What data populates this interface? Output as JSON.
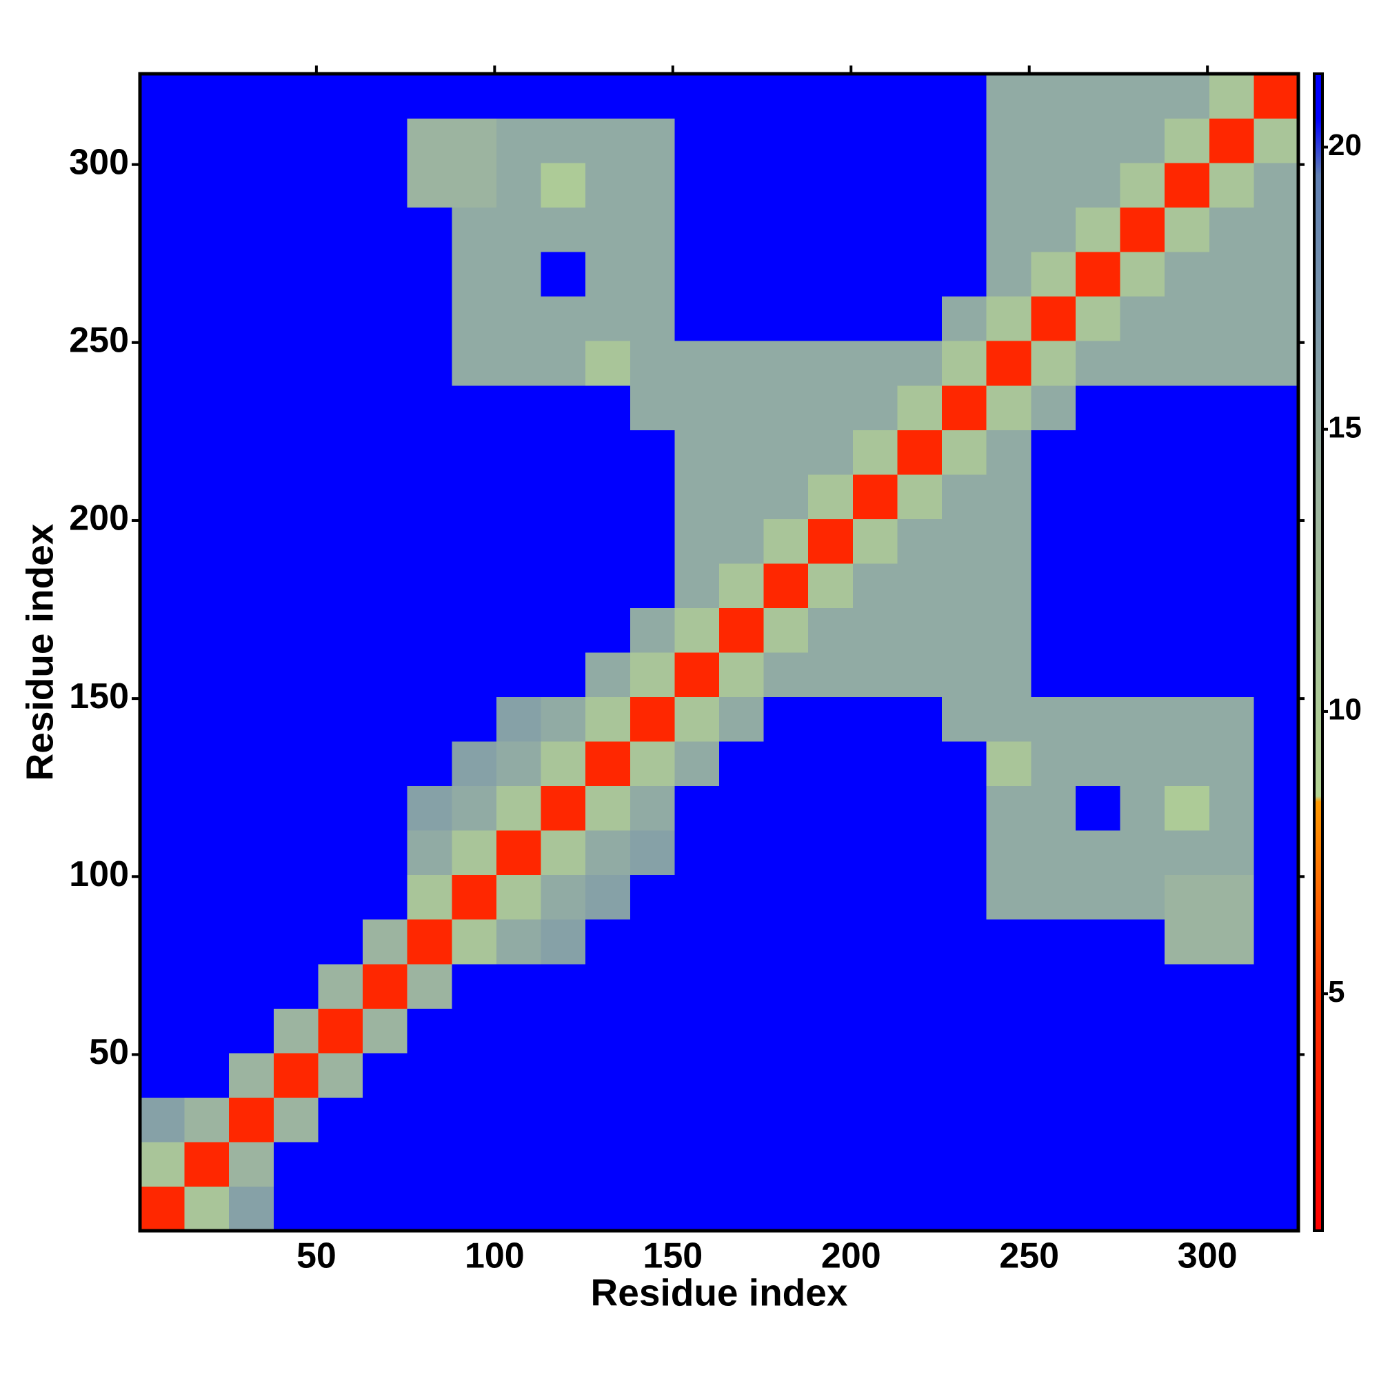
{
  "chart_data": {
    "type": "heatmap",
    "xlabel": "Residue index",
    "ylabel": "Residue index",
    "xlim": [
      0.5,
      325.5
    ],
    "ylim": [
      0.5,
      325.5
    ],
    "xticks": [
      50,
      100,
      150,
      200,
      250,
      300
    ],
    "yticks": [
      50,
      100,
      150,
      200,
      250,
      300
    ],
    "xbins": [
      0.5,
      13,
      25.5,
      38,
      50.5,
      63,
      75.5,
      88,
      100.5,
      113,
      125.5,
      138,
      150.5,
      163,
      175.5,
      188,
      200.5,
      213,
      225.5,
      238,
      250.5,
      263,
      275.5,
      288,
      300.5,
      313,
      325.5
    ],
    "ybins": [
      0.5,
      13,
      25.5,
      38,
      50.5,
      63,
      75.5,
      88,
      100.5,
      113,
      125.5,
      138,
      150.5,
      163,
      175.5,
      188,
      200.5,
      213,
      225.5,
      238,
      250.5,
      263,
      275.5,
      288,
      300.5,
      313,
      325.5
    ],
    "zlim": [
      0.8,
      21.3
    ],
    "zticks": [
      5,
      10,
      15,
      20
    ],
    "colorscale": [
      [
        0.8,
        "#ff0000"
      ],
      [
        5,
        "#ff3300"
      ],
      [
        8.4,
        "#ff9900"
      ],
      [
        8.5,
        "#b4d494"
      ],
      [
        14,
        "#9cb4a0"
      ],
      [
        19.5,
        "#6080b4"
      ],
      [
        20.5,
        "#0000ff"
      ],
      [
        21.3,
        "#0000ff"
      ]
    ],
    "z": [
      [
        4,
        11,
        16,
        21,
        21,
        21,
        21,
        21,
        21,
        21,
        21,
        21,
        21,
        21,
        21,
        21,
        21,
        21,
        21,
        21,
        21,
        21,
        21,
        21,
        21,
        21
      ],
      [
        11,
        4,
        14,
        21,
        21,
        21,
        21,
        21,
        21,
        21,
        21,
        21,
        21,
        21,
        21,
        21,
        21,
        21,
        21,
        21,
        21,
        21,
        21,
        21,
        21,
        21
      ],
      [
        16,
        14,
        4,
        14,
        21,
        21,
        21,
        21,
        21,
        21,
        21,
        21,
        21,
        21,
        21,
        21,
        21,
        21,
        21,
        21,
        21,
        21,
        21,
        21,
        21,
        21
      ],
      [
        21,
        21,
        14,
        4,
        14,
        21,
        21,
        21,
        21,
        21,
        21,
        21,
        21,
        21,
        21,
        21,
        21,
        21,
        21,
        21,
        21,
        21,
        21,
        21,
        21,
        21
      ],
      [
        21,
        21,
        21,
        14,
        4,
        14,
        21,
        21,
        21,
        21,
        21,
        21,
        21,
        21,
        21,
        21,
        21,
        21,
        21,
        21,
        21,
        21,
        21,
        21,
        21,
        21
      ],
      [
        21,
        21,
        21,
        21,
        14,
        4,
        14,
        21,
        21,
        21,
        21,
        21,
        21,
        21,
        21,
        21,
        21,
        21,
        21,
        21,
        21,
        21,
        21,
        21,
        21,
        21
      ],
      [
        21,
        21,
        21,
        21,
        21,
        14,
        4,
        11,
        15,
        16,
        21,
        21,
        21,
        21,
        21,
        21,
        21,
        21,
        21,
        21,
        21,
        21,
        21,
        14,
        14,
        21
      ],
      [
        21,
        21,
        21,
        21,
        21,
        21,
        11,
        4,
        11,
        15,
        16,
        21,
        21,
        21,
        21,
        21,
        21,
        21,
        21,
        15,
        15,
        15,
        15,
        14,
        14,
        21
      ],
      [
        21,
        21,
        21,
        21,
        21,
        21,
        15,
        11,
        4,
        11,
        15,
        16,
        21,
        21,
        21,
        21,
        21,
        21,
        21,
        15,
        15,
        15,
        15,
        15,
        15,
        21
      ],
      [
        21,
        21,
        21,
        21,
        21,
        21,
        16,
        15,
        11,
        4,
        11,
        15,
        21,
        21,
        21,
        21,
        21,
        21,
        21,
        15,
        15,
        21,
        15,
        10,
        15,
        21
      ],
      [
        21,
        21,
        21,
        21,
        21,
        21,
        21,
        16,
        15,
        11,
        4,
        11,
        15,
        21,
        21,
        21,
        21,
        21,
        21,
        11,
        15,
        15,
        15,
        15,
        15,
        21
      ],
      [
        21,
        21,
        21,
        21,
        21,
        21,
        21,
        21,
        16,
        15,
        11,
        4,
        11,
        15,
        21,
        21,
        21,
        21,
        15,
        15,
        15,
        15,
        15,
        15,
        15,
        21
      ],
      [
        21,
        21,
        21,
        21,
        21,
        21,
        21,
        21,
        21,
        21,
        15,
        11,
        4,
        11,
        15,
        15,
        15,
        15,
        15,
        15,
        21,
        21,
        21,
        21,
        21,
        21
      ],
      [
        21,
        21,
        21,
        21,
        21,
        21,
        21,
        21,
        21,
        21,
        21,
        15,
        11,
        4,
        11,
        15,
        15,
        15,
        15,
        15,
        21,
        21,
        21,
        21,
        21,
        21
      ],
      [
        21,
        21,
        21,
        21,
        21,
        21,
        21,
        21,
        21,
        21,
        21,
        21,
        15,
        11,
        4,
        11,
        15,
        15,
        15,
        15,
        21,
        21,
        21,
        21,
        21,
        21
      ],
      [
        21,
        21,
        21,
        21,
        21,
        21,
        21,
        21,
        21,
        21,
        21,
        21,
        15,
        15,
        11,
        4,
        11,
        15,
        15,
        15,
        21,
        21,
        21,
        21,
        21,
        21
      ],
      [
        21,
        21,
        21,
        21,
        21,
        21,
        21,
        21,
        21,
        21,
        21,
        21,
        15,
        15,
        15,
        11,
        4,
        11,
        15,
        15,
        21,
        21,
        21,
        21,
        21,
        21
      ],
      [
        21,
        21,
        21,
        21,
        21,
        21,
        21,
        21,
        21,
        21,
        21,
        21,
        15,
        15,
        15,
        15,
        11,
        4,
        11,
        15,
        21,
        21,
        21,
        21,
        21,
        21
      ],
      [
        21,
        21,
        21,
        21,
        21,
        21,
        21,
        21,
        21,
        21,
        21,
        15,
        15,
        15,
        15,
        15,
        15,
        11,
        4,
        11,
        15,
        21,
        21,
        21,
        21,
        21
      ],
      [
        21,
        21,
        21,
        21,
        21,
        21,
        21,
        15,
        15,
        15,
        11,
        15,
        15,
        15,
        15,
        15,
        15,
        15,
        11,
        4,
        11,
        15,
        15,
        15,
        15,
        15
      ],
      [
        21,
        21,
        21,
        21,
        21,
        21,
        21,
        15,
        15,
        15,
        15,
        15,
        21,
        21,
        21,
        21,
        21,
        21,
        15,
        11,
        4,
        11,
        15,
        15,
        15,
        15
      ],
      [
        21,
        21,
        21,
        21,
        21,
        21,
        21,
        15,
        15,
        21,
        15,
        15,
        21,
        21,
        21,
        21,
        21,
        21,
        21,
        15,
        11,
        4,
        11,
        15,
        15,
        15
      ],
      [
        21,
        21,
        21,
        21,
        21,
        21,
        21,
        15,
        15,
        15,
        15,
        15,
        21,
        21,
        21,
        21,
        21,
        21,
        21,
        15,
        15,
        11,
        4,
        11,
        15,
        15
      ],
      [
        21,
        21,
        21,
        21,
        21,
        21,
        14,
        14,
        15,
        10,
        15,
        15,
        21,
        21,
        21,
        21,
        21,
        21,
        21,
        15,
        15,
        15,
        11,
        4,
        11,
        15
      ],
      [
        21,
        21,
        21,
        21,
        21,
        21,
        14,
        14,
        15,
        15,
        15,
        15,
        21,
        21,
        21,
        21,
        21,
        21,
        21,
        15,
        15,
        15,
        15,
        11,
        4,
        11
      ],
      [
        21,
        21,
        21,
        21,
        21,
        21,
        21,
        21,
        21,
        21,
        21,
        21,
        21,
        21,
        21,
        21,
        21,
        21,
        21,
        15,
        15,
        15,
        15,
        15,
        11,
        4
      ]
    ]
  }
}
